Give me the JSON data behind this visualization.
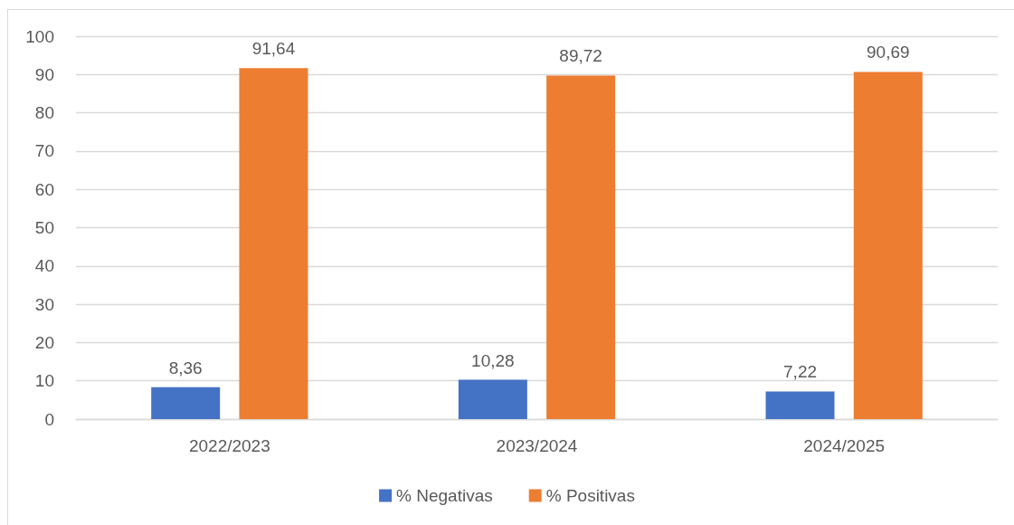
{
  "chart_data": {
    "type": "bar",
    "categories": [
      "2022/2023",
      "2023/2024",
      "2024/2025"
    ],
    "series": [
      {
        "name": "% Negativas",
        "color": "#4472c4",
        "values": [
          8.36,
          10.28,
          7.22
        ],
        "value_labels": [
          "8,36",
          "10,28",
          "7,22"
        ]
      },
      {
        "name": "% Positivas",
        "color": "#ed7d31",
        "values": [
          91.64,
          89.72,
          90.69
        ],
        "value_labels": [
          "91,64",
          "89,72",
          "90,69"
        ]
      }
    ],
    "ylim": [
      0,
      100
    ],
    "yticks": [
      0,
      10,
      20,
      30,
      40,
      50,
      60,
      70,
      80,
      90,
      100
    ],
    "grid": "y",
    "legend": "bottom"
  }
}
